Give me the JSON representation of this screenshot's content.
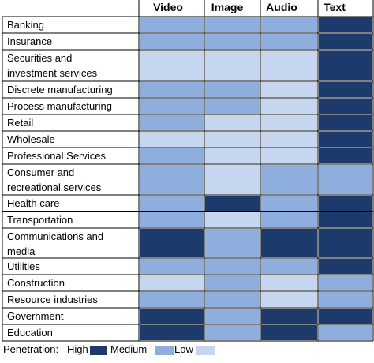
{
  "chart_data": {
    "type": "heatmap",
    "columns": [
      "Video",
      "Image",
      "Audio",
      "Text"
    ],
    "rows": [
      {
        "label": [
          "Banking"
        ],
        "values": [
          "medium",
          "medium",
          "medium",
          "high"
        ]
      },
      {
        "label": [
          "Insurance"
        ],
        "values": [
          "medium",
          "medium",
          "medium",
          "high"
        ]
      },
      {
        "label": [
          "Securities and",
          "investment services"
        ],
        "values": [
          "low",
          "low",
          "low",
          "high"
        ]
      },
      {
        "label": [
          "Discrete manufacturing"
        ],
        "values": [
          "medium",
          "medium",
          "low",
          "high"
        ]
      },
      {
        "label": [
          "Process manufacturing"
        ],
        "values": [
          "medium",
          "medium",
          "low",
          "high"
        ]
      },
      {
        "label": [
          "Retail"
        ],
        "values": [
          "medium",
          "low",
          "low",
          "high"
        ]
      },
      {
        "label": [
          "Wholesale"
        ],
        "values": [
          "low",
          "low",
          "low",
          "high"
        ]
      },
      {
        "label": [
          "Professional Services"
        ],
        "values": [
          "medium",
          "low",
          "low",
          "high"
        ]
      },
      {
        "label": [
          "Consumer and",
          "recreational services"
        ],
        "values": [
          "medium",
          "low",
          "medium",
          "medium"
        ]
      },
      {
        "label": [
          "Health care"
        ],
        "values": [
          "medium",
          "high",
          "medium",
          "high"
        ]
      },
      {
        "label": [
          "Transportation"
        ],
        "values": [
          "medium",
          "low",
          "medium",
          "high"
        ]
      },
      {
        "label": [
          "Communications and",
          "media"
        ],
        "values": [
          "high",
          "medium",
          "high",
          "high"
        ]
      },
      {
        "label": [
          "Utilities"
        ],
        "values": [
          "medium",
          "medium",
          "medium",
          "high"
        ]
      },
      {
        "label": [
          "Construction"
        ],
        "values": [
          "low",
          "medium",
          "low",
          "medium"
        ]
      },
      {
        "label": [
          "Resource industries"
        ],
        "values": [
          "medium",
          "medium",
          "low",
          "medium"
        ]
      },
      {
        "label": [
          "Government"
        ],
        "values": [
          "high",
          "medium",
          "high",
          "high"
        ]
      },
      {
        "label": [
          "Education"
        ],
        "values": [
          "high",
          "medium",
          "high",
          "medium"
        ]
      }
    ],
    "levels": {
      "high": "#1c3a6b",
      "medium": "#8eaedd",
      "low": "#c6d6ee"
    },
    "legend": {
      "prefix": "Penetration:",
      "items": [
        {
          "label": "High",
          "level": "high"
        },
        {
          "label": "Medium",
          "level": "medium"
        },
        {
          "label": "Low",
          "level": "low"
        }
      ]
    }
  }
}
